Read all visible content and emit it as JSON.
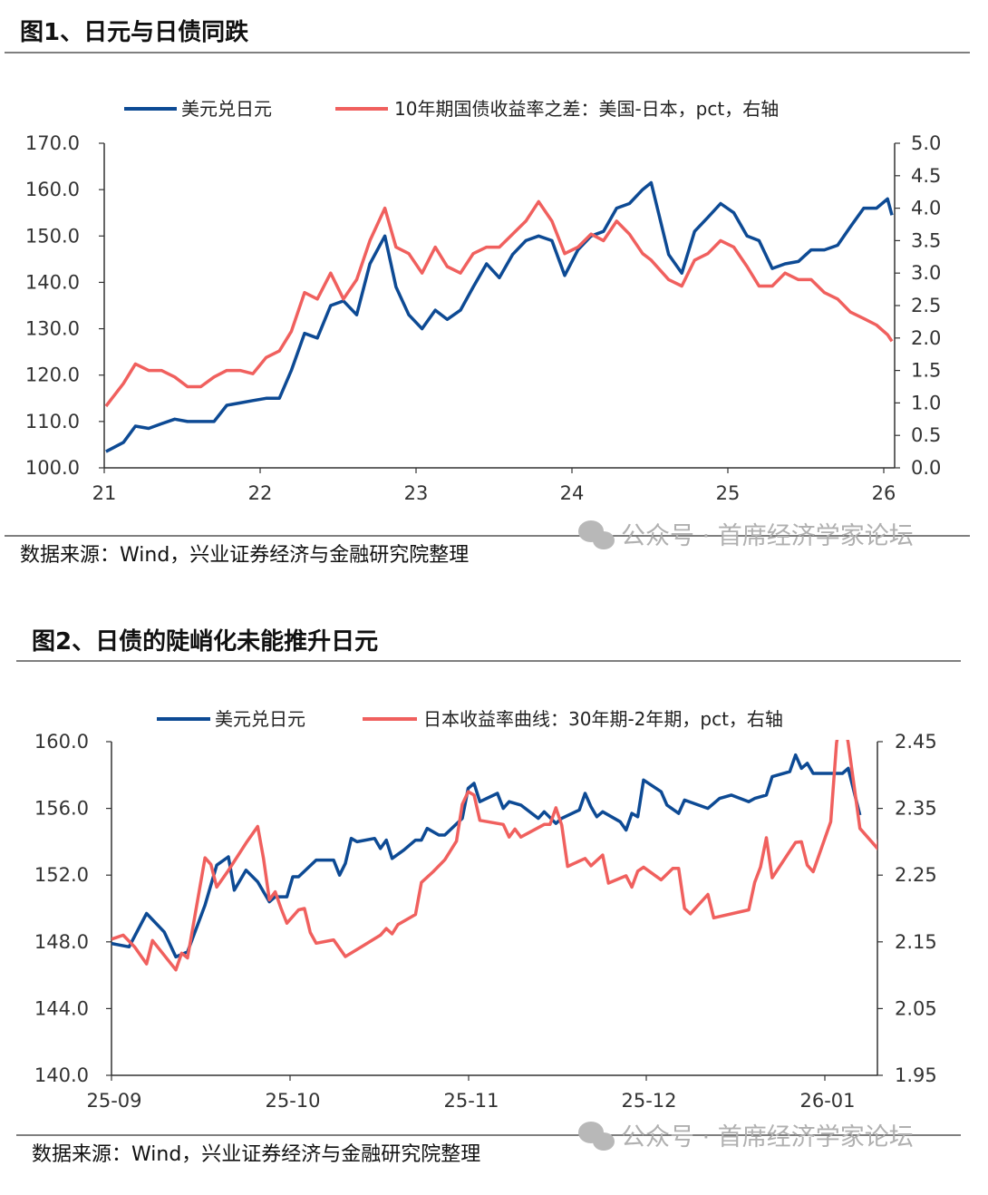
{
  "figure1": {
    "title": "图1、日元与日债同跌",
    "source": "数据来源：Wind，兴业证券经济与金融研究院整理",
    "watermark": "公众号 · 首席经济学家论坛"
  },
  "figure2": {
    "title": "图2、日债的陡峭化未能推升日元",
    "source": "数据来源：Wind，兴业证券经济与金融研究院整理",
    "watermark": "公众号 · 首席经济学家论坛"
  },
  "colors": {
    "blue": "#0d4a94",
    "red": "#f0605e",
    "axis": "#333333",
    "watermark": "#b0b0b0"
  },
  "chart_data": [
    {
      "type": "line",
      "grid": false,
      "legend_position": "top",
      "xticks": [
        "21",
        "22",
        "23",
        "24",
        "25",
        "26"
      ],
      "yticks_left": [
        "100.0",
        "110.0",
        "120.0",
        "130.0",
        "140.0",
        "150.0",
        "160.0",
        "170.0"
      ],
      "yticks_right": [
        "0.0",
        "0.5",
        "1.0",
        "1.5",
        "2.0",
        "2.5",
        "3.0",
        "3.5",
        "4.0",
        "4.5",
        "5.0"
      ],
      "ylim_left": [
        100,
        170
      ],
      "ylim_right": [
        0,
        5
      ],
      "series": [
        {
          "name": "美元兑日元",
          "axis": "left",
          "color": "#0d4a94",
          "x": [
            "2021-01-05",
            "2021-02-15",
            "2021-03-15",
            "2021-04-15",
            "2021-05-15",
            "2021-06-15",
            "2021-07-15",
            "2021-08-15",
            "2021-09-15",
            "2021-10-15",
            "2021-11-15",
            "2021-12-15",
            "2022-01-15",
            "2022-02-15",
            "2022-03-15",
            "2022-04-15",
            "2022-05-15",
            "2022-06-15",
            "2022-07-15",
            "2022-08-15",
            "2022-09-15",
            "2022-10-20",
            "2022-11-15",
            "2022-12-15",
            "2023-01-15",
            "2023-02-15",
            "2023-03-15",
            "2023-04-15",
            "2023-05-15",
            "2023-06-15",
            "2023-07-15",
            "2023-08-15",
            "2023-09-15",
            "2023-10-15",
            "2023-11-15",
            "2023-12-15",
            "2024-01-15",
            "2024-02-15",
            "2024-03-15",
            "2024-04-15",
            "2024-05-15",
            "2024-06-15",
            "2024-07-05",
            "2024-08-15",
            "2024-09-15",
            "2024-10-15",
            "2024-11-15",
            "2024-12-15",
            "2025-01-15",
            "2025-02-15",
            "2025-03-15",
            "2025-04-15",
            "2025-05-15",
            "2025-06-15",
            "2025-07-15",
            "2025-08-15",
            "2025-09-15",
            "2025-10-15",
            "2025-11-15",
            "2025-12-15",
            "2026-01-10",
            "2026-01-20"
          ],
          "values": [
            103.5,
            105.5,
            109,
            108.5,
            109.5,
            110.5,
            110,
            110,
            110,
            113.5,
            114,
            114.5,
            115,
            115,
            121,
            129,
            128,
            135,
            136,
            133,
            144,
            150,
            139,
            133,
            130,
            134,
            132,
            134,
            139,
            144,
            141,
            146,
            149,
            150,
            149,
            141.5,
            147,
            150,
            151,
            156,
            157,
            160,
            161.5,
            146,
            142,
            151,
            154,
            157,
            155,
            150,
            149,
            143,
            144,
            144.5,
            147,
            147,
            148,
            152,
            156,
            156,
            158,
            154.5
          ]
        },
        {
          "name": "10年期国债收益率之差：美国-日本，pct，右轴",
          "axis": "right",
          "color": "#f0605e",
          "x": [
            "2021-01-05",
            "2021-02-15",
            "2021-03-15",
            "2021-04-15",
            "2021-05-15",
            "2021-06-15",
            "2021-07-15",
            "2021-08-15",
            "2021-09-15",
            "2021-10-15",
            "2021-11-15",
            "2021-12-15",
            "2022-01-15",
            "2022-02-15",
            "2022-03-15",
            "2022-04-15",
            "2022-05-15",
            "2022-06-15",
            "2022-07-15",
            "2022-08-15",
            "2022-09-15",
            "2022-10-20",
            "2022-11-15",
            "2022-12-15",
            "2023-01-15",
            "2023-02-15",
            "2023-03-15",
            "2023-04-15",
            "2023-05-15",
            "2023-06-15",
            "2023-07-15",
            "2023-08-15",
            "2023-09-15",
            "2023-10-15",
            "2023-11-15",
            "2023-12-15",
            "2024-01-15",
            "2024-02-15",
            "2024-03-15",
            "2024-04-15",
            "2024-05-15",
            "2024-06-15",
            "2024-07-05",
            "2024-08-15",
            "2024-09-15",
            "2024-10-15",
            "2024-11-15",
            "2024-12-15",
            "2025-01-15",
            "2025-02-15",
            "2025-03-15",
            "2025-04-15",
            "2025-05-15",
            "2025-06-15",
            "2025-07-15",
            "2025-08-15",
            "2025-09-15",
            "2025-10-15",
            "2025-11-15",
            "2025-12-15",
            "2026-01-10",
            "2026-01-20"
          ],
          "values": [
            0.95,
            1.3,
            1.6,
            1.5,
            1.5,
            1.4,
            1.25,
            1.25,
            1.4,
            1.5,
            1.5,
            1.45,
            1.7,
            1.8,
            2.1,
            2.7,
            2.6,
            3.0,
            2.6,
            2.9,
            3.5,
            4.0,
            3.4,
            3.3,
            3.0,
            3.4,
            3.1,
            3.0,
            3.3,
            3.4,
            3.4,
            3.6,
            3.8,
            4.1,
            3.8,
            3.3,
            3.4,
            3.6,
            3.5,
            3.8,
            3.6,
            3.3,
            3.2,
            2.9,
            2.8,
            3.2,
            3.3,
            3.5,
            3.4,
            3.1,
            2.8,
            2.8,
            3.0,
            2.9,
            2.9,
            2.7,
            2.6,
            2.4,
            2.3,
            2.2,
            2.05,
            1.95
          ]
        }
      ]
    },
    {
      "type": "line",
      "grid": false,
      "legend_position": "top",
      "xticks": [
        "25-09",
        "25-10",
        "25-11",
        "25-12",
        "26-01"
      ],
      "yticks_left": [
        "140.0",
        "144.0",
        "148.0",
        "152.0",
        "156.0",
        "160.0"
      ],
      "yticks_right": [
        "1.95",
        "2.05",
        "2.15",
        "2.25",
        "2.35",
        "2.45"
      ],
      "ylim_left": [
        140,
        160
      ],
      "ylim_right": [
        1.95,
        2.45
      ],
      "series": [
        {
          "name": "美元兑日元",
          "axis": "left",
          "color": "#0d4a94",
          "x": [
            "2025-09-01",
            "2025-09-04",
            "2025-09-07",
            "2025-09-10",
            "2025-09-12",
            "2025-09-14",
            "2025-09-17",
            "2025-09-19",
            "2025-09-21",
            "2025-09-22",
            "2025-09-24",
            "2025-09-26",
            "2025-09-28",
            "2025-09-29",
            "2025-10-01",
            "2025-10-02",
            "2025-10-03",
            "2025-10-06",
            "2025-10-09",
            "2025-10-10",
            "2025-10-11",
            "2025-10-12",
            "2025-10-13",
            "2025-10-16",
            "2025-10-17",
            "2025-10-18",
            "2025-10-19",
            "2025-10-21",
            "2025-10-23",
            "2025-10-24",
            "2025-10-25",
            "2025-10-27",
            "2025-10-28",
            "2025-10-31",
            "2025-11-01",
            "2025-11-02",
            "2025-11-03",
            "2025-11-06",
            "2025-11-07",
            "2025-11-08",
            "2025-11-10",
            "2025-11-13",
            "2025-11-14",
            "2025-11-16",
            "2025-11-17",
            "2025-11-20",
            "2025-11-21",
            "2025-11-22",
            "2025-11-23",
            "2025-11-24",
            "2025-11-27",
            "2025-11-28",
            "2025-11-29",
            "2025-11-30",
            "2025-12-01",
            "2025-12-04",
            "2025-12-05",
            "2025-12-07",
            "2025-12-08",
            "2025-12-12",
            "2025-12-14",
            "2025-12-16",
            "2025-12-19",
            "2025-12-20",
            "2025-12-22",
            "2025-12-23",
            "2025-12-26",
            "2025-12-27",
            "2025-12-28",
            "2025-12-29",
            "2025-12-30",
            "2026-01-04",
            "2026-01-05",
            "2026-01-07"
          ],
          "values": [
            147.9,
            147.7,
            149.7,
            148.6,
            147.1,
            147.4,
            150.2,
            152.6,
            153.1,
            151.1,
            152.3,
            151.6,
            150.4,
            150.7,
            150.7,
            151.9,
            151.9,
            152.9,
            152.9,
            152.0,
            152.7,
            154.2,
            154.0,
            154.2,
            153.6,
            154.1,
            153.0,
            153.5,
            154.1,
            154.1,
            154.8,
            154.4,
            154.4,
            155.4,
            157.2,
            157.5,
            156.4,
            156.9,
            156.0,
            156.4,
            156.2,
            155.4,
            155.8,
            155.1,
            155.4,
            155.9,
            156.9,
            156.1,
            155.5,
            155.8,
            155.2,
            154.7,
            155.7,
            155.5,
            157.7,
            157.0,
            156.2,
            155.7,
            156.5,
            156.0,
            156.6,
            156.8,
            156.4,
            156.6,
            156.8,
            157.9,
            158.2,
            159.2,
            158.4,
            158.7,
            158.1,
            158.1,
            158.4,
            155.6
          ]
        },
        {
          "name": "日本收益率曲线：30年期-2年期，pct，右轴",
          "axis": "right",
          "color": "#f0605e",
          "x": [
            "2025-09-01",
            "2025-09-03",
            "2025-09-05",
            "2025-09-07",
            "2025-09-08",
            "2025-09-12",
            "2025-09-13",
            "2025-09-14",
            "2025-09-17",
            "2025-09-18",
            "2025-09-19",
            "2025-09-21",
            "2025-09-24",
            "2025-09-26",
            "2025-09-27",
            "2025-09-28",
            "2025-09-29",
            "2025-09-30",
            "2025-10-01",
            "2025-10-03",
            "2025-10-04",
            "2025-10-05",
            "2025-10-06",
            "2025-10-09",
            "2025-10-11",
            "2025-10-14",
            "2025-10-17",
            "2025-10-18",
            "2025-10-19",
            "2025-10-20",
            "2025-10-23",
            "2025-10-24",
            "2025-10-26",
            "2025-10-28",
            "2025-10-30",
            "2025-10-31",
            "2025-11-01",
            "2025-11-02",
            "2025-11-03",
            "2025-11-07",
            "2025-11-08",
            "2025-11-09",
            "2025-11-10",
            "2025-11-14",
            "2025-11-15",
            "2025-11-16",
            "2025-11-17",
            "2025-11-18",
            "2025-11-21",
            "2025-11-22",
            "2025-11-24",
            "2025-11-25",
            "2025-11-28",
            "2025-11-29",
            "2025-11-30",
            "2025-12-01",
            "2025-12-04",
            "2025-12-06",
            "2025-12-07",
            "2025-12-08",
            "2025-12-09",
            "2025-12-12",
            "2025-12-13",
            "2025-12-19",
            "2025-12-20",
            "2025-12-21",
            "2025-12-22",
            "2025-12-23",
            "2025-12-27",
            "2025-12-28",
            "2025-12-29",
            "2025-12-30",
            "2026-01-02",
            "2026-01-03",
            "2026-01-04",
            "2026-01-05",
            "2026-01-07",
            "2026-01-10",
            "2026-01-11"
          ],
          "values": [
            2.154,
            2.16,
            2.142,
            2.117,
            2.152,
            2.108,
            2.133,
            2.126,
            2.276,
            2.266,
            2.232,
            2.257,
            2.298,
            2.323,
            2.275,
            2.213,
            2.225,
            2.2,
            2.178,
            2.198,
            2.2,
            2.164,
            2.148,
            2.153,
            2.128,
            2.144,
            2.16,
            2.17,
            2.162,
            2.176,
            2.191,
            2.239,
            2.255,
            2.273,
            2.301,
            2.356,
            2.375,
            2.37,
            2.332,
            2.326,
            2.307,
            2.319,
            2.307,
            2.326,
            2.326,
            2.351,
            2.325,
            2.263,
            2.275,
            2.264,
            2.28,
            2.238,
            2.249,
            2.232,
            2.256,
            2.262,
            2.243,
            2.26,
            2.26,
            2.2,
            2.192,
            2.221,
            2.186,
            2.198,
            2.239,
            2.262,
            2.306,
            2.246,
            2.299,
            2.3,
            2.265,
            2.255,
            2.33,
            2.448,
            2.5,
            2.448,
            2.32,
            2.29,
            2.35
          ]
        }
      ]
    }
  ]
}
